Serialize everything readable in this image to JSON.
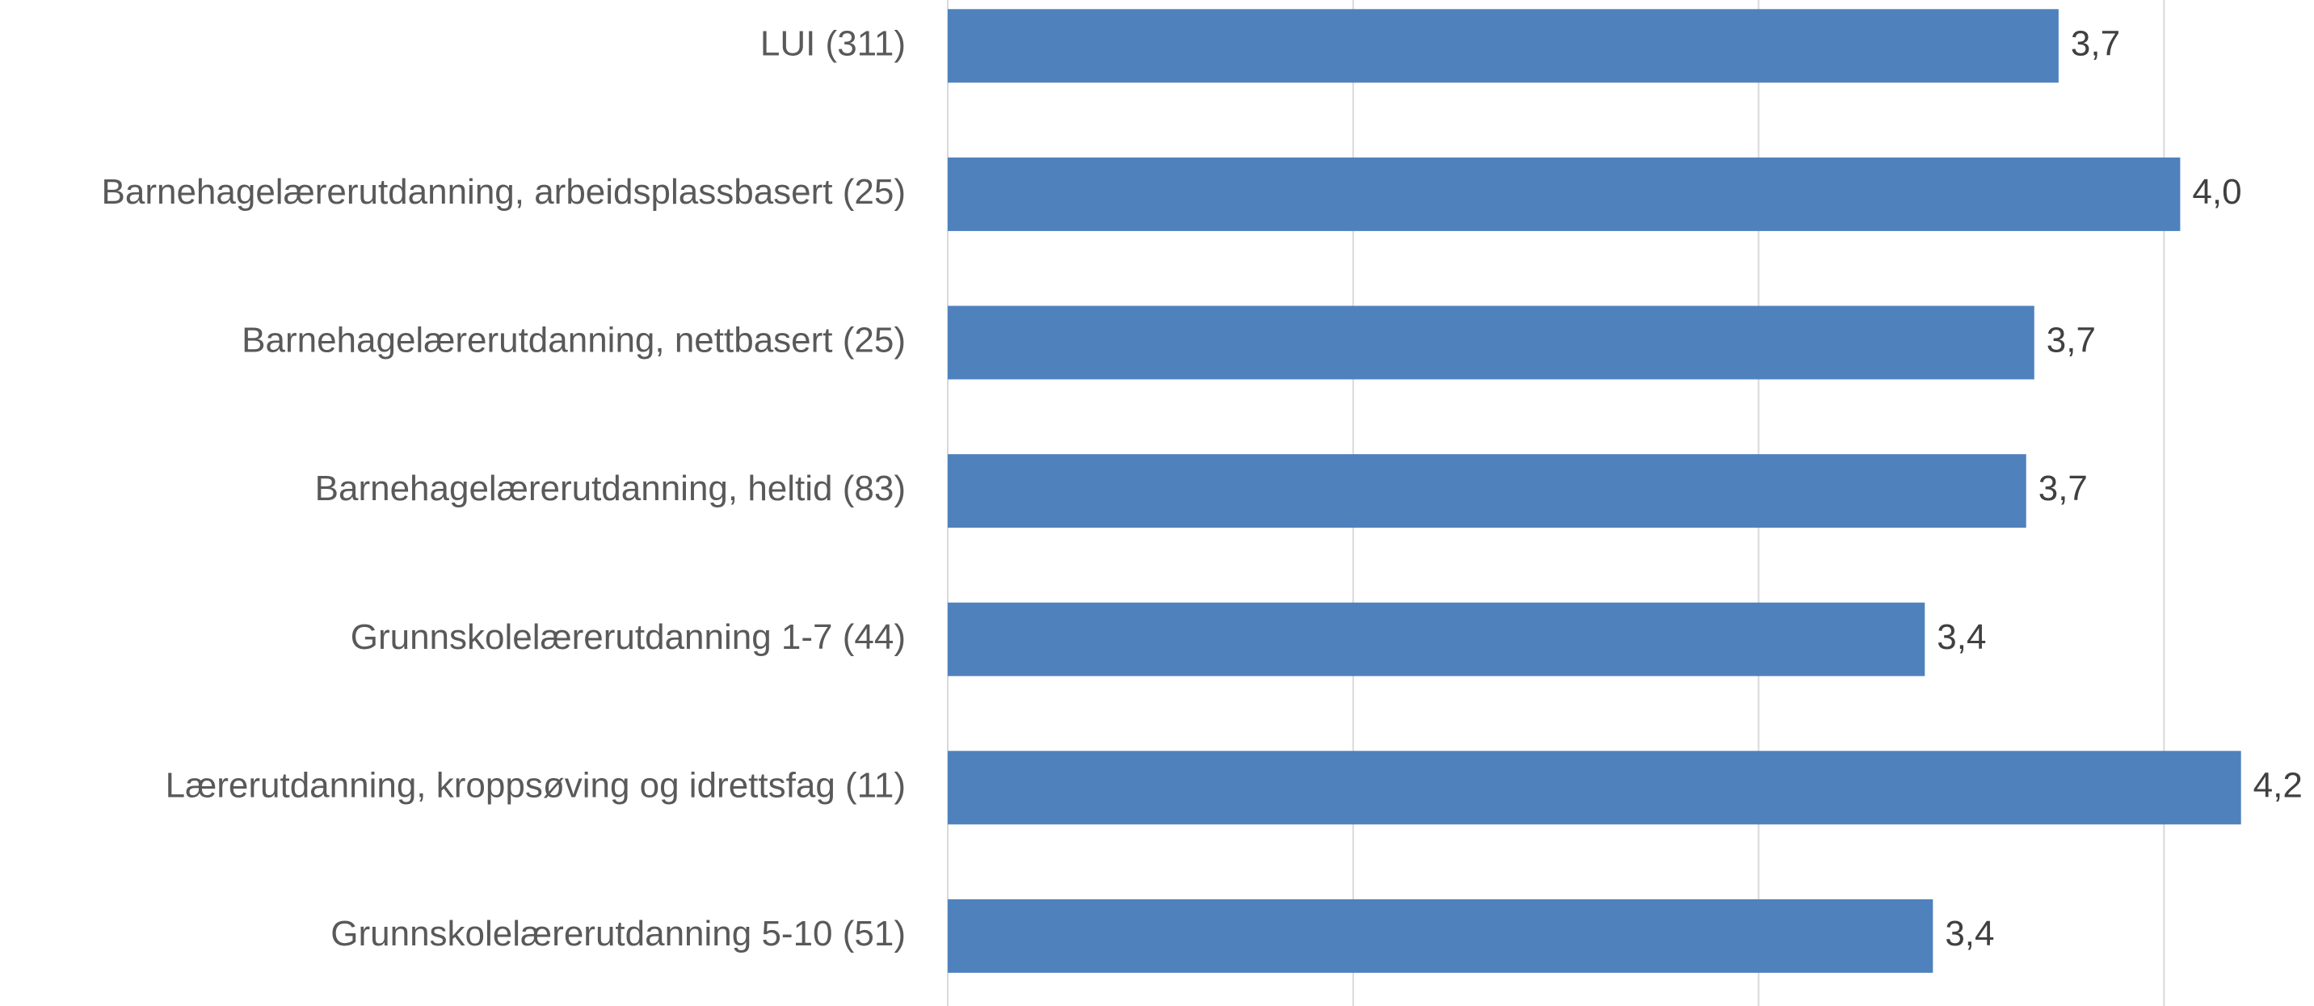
{
  "chart_data": {
    "type": "bar",
    "orientation": "horizontal",
    "categories": [
      "LUI (311)",
      "Barnehagelærerutdanning, arbeidsplassbasert (25)",
      "Barnehagelærerutdanning, nettbasert (25)",
      "Barnehagelærerutdanning, heltid (83)",
      "Grunnskolelærerutdanning 1-7 (44)",
      "Lærerutdanning, kroppsøving og idrettsfag (11)",
      "Grunnskolelærerutdanning 5-10 (51)"
    ],
    "values": [
      3.74,
      4.04,
      3.68,
      3.66,
      3.41,
      4.19,
      3.43
    ],
    "value_labels": [
      "3,7",
      "4,0",
      "3,7",
      "3,7",
      "3,4",
      "4,2",
      "3,4"
    ],
    "color": "#4f81bd",
    "xlim": [
      1,
      4.37
    ],
    "xticks": [
      1,
      2,
      3,
      4
    ],
    "grid": true
  }
}
